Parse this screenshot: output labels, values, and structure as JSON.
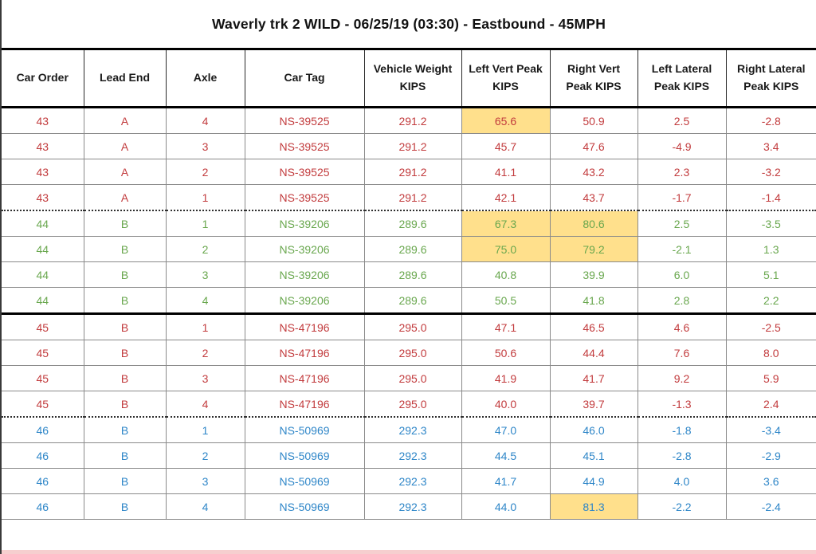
{
  "title": "Waverly trk 2 WILD - 06/25/19 (03:30) - Eastbound - 45MPH",
  "table": {
    "columns": [
      "Car Order",
      "Lead End",
      "Axle",
      "Car Tag",
      "Vehicle Weight KIPS",
      "Left Vert Peak KIPS",
      "Right Vert Peak KIPS",
      "Left Lateral Peak KIPS",
      "Right Lateral Peak KIPS"
    ],
    "rows": [
      {
        "values": [
          "43",
          "A",
          "4",
          "NS-39525",
          "291.2",
          "65.6",
          "50.9",
          "2.5",
          "-2.8"
        ],
        "color": "red",
        "highlight": [
          5
        ],
        "separator": ""
      },
      {
        "values": [
          "43",
          "A",
          "3",
          "NS-39525",
          "291.2",
          "45.7",
          "47.6",
          "-4.9",
          "3.4"
        ],
        "color": "red",
        "highlight": [],
        "separator": ""
      },
      {
        "values": [
          "43",
          "A",
          "2",
          "NS-39525",
          "291.2",
          "41.1",
          "43.2",
          "2.3",
          "-3.2"
        ],
        "color": "red",
        "highlight": [],
        "separator": ""
      },
      {
        "values": [
          "43",
          "A",
          "1",
          "NS-39525",
          "291.2",
          "42.1",
          "43.7",
          "-1.7",
          "-1.4"
        ],
        "color": "red",
        "highlight": [],
        "separator": "dotted"
      },
      {
        "values": [
          "44",
          "B",
          "1",
          "NS-39206",
          "289.6",
          "67.3",
          "80.6",
          "2.5",
          "-3.5"
        ],
        "color": "green",
        "highlight": [
          5,
          6
        ],
        "separator": ""
      },
      {
        "values": [
          "44",
          "B",
          "2",
          "NS-39206",
          "289.6",
          "75.0",
          "79.2",
          "-2.1",
          "1.3"
        ],
        "color": "green",
        "highlight": [
          5,
          6
        ],
        "separator": ""
      },
      {
        "values": [
          "44",
          "B",
          "3",
          "NS-39206",
          "289.6",
          "40.8",
          "39.9",
          "6.0",
          "5.1"
        ],
        "color": "green",
        "highlight": [],
        "separator": ""
      },
      {
        "values": [
          "44",
          "B",
          "4",
          "NS-39206",
          "289.6",
          "50.5",
          "41.8",
          "2.8",
          "2.2"
        ],
        "color": "green",
        "highlight": [],
        "separator": "thick"
      },
      {
        "values": [
          "45",
          "B",
          "1",
          "NS-47196",
          "295.0",
          "47.1",
          "46.5",
          "4.6",
          "-2.5"
        ],
        "color": "red",
        "highlight": [],
        "separator": ""
      },
      {
        "values": [
          "45",
          "B",
          "2",
          "NS-47196",
          "295.0",
          "50.6",
          "44.4",
          "7.6",
          "8.0"
        ],
        "color": "red",
        "highlight": [],
        "separator": ""
      },
      {
        "values": [
          "45",
          "B",
          "3",
          "NS-47196",
          "295.0",
          "41.9",
          "41.7",
          "9.2",
          "5.9"
        ],
        "color": "red",
        "highlight": [],
        "separator": ""
      },
      {
        "values": [
          "45",
          "B",
          "4",
          "NS-47196",
          "295.0",
          "40.0",
          "39.7",
          "-1.3",
          "2.4"
        ],
        "color": "red",
        "highlight": [],
        "separator": "dotted"
      },
      {
        "values": [
          "46",
          "B",
          "1",
          "NS-50969",
          "292.3",
          "47.0",
          "46.0",
          "-1.8",
          "-3.4"
        ],
        "color": "blue",
        "highlight": [],
        "separator": ""
      },
      {
        "values": [
          "46",
          "B",
          "2",
          "NS-50969",
          "292.3",
          "44.5",
          "45.1",
          "-2.8",
          "-2.9"
        ],
        "color": "blue",
        "highlight": [],
        "separator": ""
      },
      {
        "values": [
          "46",
          "B",
          "3",
          "NS-50969",
          "292.3",
          "41.7",
          "44.9",
          "4.0",
          "3.6"
        ],
        "color": "blue",
        "highlight": [],
        "separator": ""
      },
      {
        "values": [
          "46",
          "B",
          "4",
          "NS-50969",
          "292.3",
          "44.0",
          "81.3",
          "-2.2",
          "-2.4"
        ],
        "color": "blue",
        "highlight": [
          6
        ],
        "separator": ""
      }
    ]
  },
  "colors": {
    "red": "#c23b3d",
    "green": "#69a74e",
    "blue": "#2e86c8",
    "highlight": "#ffe08c",
    "grid": "#8a8a8a",
    "bottom_strip": "#f6cfcf"
  }
}
